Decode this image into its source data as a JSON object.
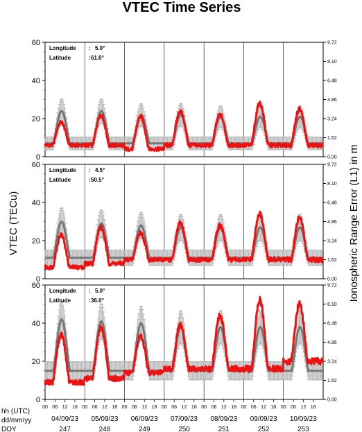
{
  "chart_data": {
    "type": "line",
    "title": "VTEC Time Series",
    "ylabel_left": "VTEC (TECu)",
    "ylabel_right": "Ionospheric Range Error (L1) in m",
    "ylim": [
      0,
      60
    ],
    "yticks": [
      "0",
      "20",
      "40",
      "60"
    ],
    "right_ticks": [
      "0.00",
      "1.62",
      "3.24",
      "4.86",
      "6.48",
      "8.10",
      "9.72"
    ],
    "hour_ticks": [
      "00",
      "06",
      "12",
      "18"
    ],
    "row_labels": [
      "hh (UTC)",
      "dd/mm/yy",
      "DOY"
    ],
    "dates": [
      "04/09/23",
      "05/09/23",
      "06/09/23",
      "07/09/23",
      "08/09/23",
      "09/09/23",
      "10/09/23"
    ],
    "doys": [
      "247",
      "248",
      "249",
      "250",
      "251",
      "252",
      "253"
    ],
    "panels": [
      {
        "lon_label": "Longitude",
        "lon_value": "5.0°",
        "lat_label": "Latitude",
        "lat_value": "61.0°",
        "obs_peaks": [
          18,
          22,
          21,
          24,
          22,
          28,
          25
        ],
        "obs_mins": [
          6,
          6,
          4,
          6,
          6,
          6,
          6
        ],
        "model_peaks": [
          24,
          24,
          22,
          22,
          21,
          21,
          21
        ],
        "model_mins": [
          7,
          7,
          7,
          7,
          7,
          7,
          7
        ]
      },
      {
        "lon_label": "Longitude",
        "lon_value": "4.5°",
        "lat_label": "Latitude",
        "lat_value": "50.5°",
        "obs_peaks": [
          23,
          27,
          24,
          29,
          28,
          34,
          32
        ],
        "obs_mins": [
          6,
          8,
          10,
          10,
          10,
          10,
          10
        ],
        "model_peaks": [
          30,
          29,
          28,
          27,
          27,
          27,
          27
        ],
        "model_mins": [
          11,
          11,
          11,
          11,
          11,
          11,
          11
        ]
      },
      {
        "lon_label": "Longitude",
        "lon_value": "5.0°",
        "lat_label": "Latitude",
        "lat_value": "36.0°",
        "obs_peaks": [
          34,
          38,
          33,
          39,
          44,
          52,
          50
        ],
        "obs_mins": [
          9,
          11,
          14,
          16,
          16,
          16,
          20
        ],
        "model_peaks": [
          42,
          41,
          40,
          38,
          38,
          38,
          38
        ],
        "model_mins": [
          15,
          15,
          15,
          15,
          15,
          15,
          15
        ]
      }
    ],
    "colors": {
      "observed": "#ee1111",
      "model": "#777777",
      "error_bars": "#b0b0b0"
    }
  }
}
